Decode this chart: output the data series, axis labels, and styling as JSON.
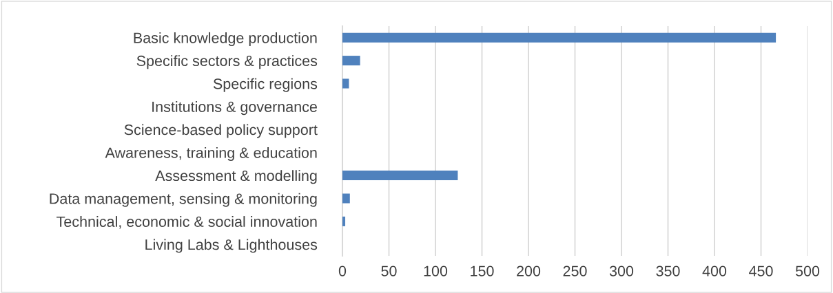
{
  "chart_data": {
    "type": "bar",
    "orientation": "horizontal",
    "categories": [
      "Basic knowledge production",
      "Specific sectors & practices",
      "Specific regions",
      "Institutions & governance",
      "Science-based policy support",
      "Awareness, training & education",
      "Assessment & modelling",
      "Data management, sensing & monitoring",
      "Technical, economic & social innovation",
      "Living Labs & Lighthouses"
    ],
    "values": [
      466,
      19,
      7,
      0,
      0,
      0,
      124,
      8,
      3,
      0
    ],
    "color": "#4f81bd",
    "xlim": [
      0,
      500
    ],
    "xticks": [
      0,
      50,
      100,
      150,
      200,
      250,
      300,
      350,
      400,
      450,
      500
    ],
    "grid": "x",
    "legend": false
  }
}
